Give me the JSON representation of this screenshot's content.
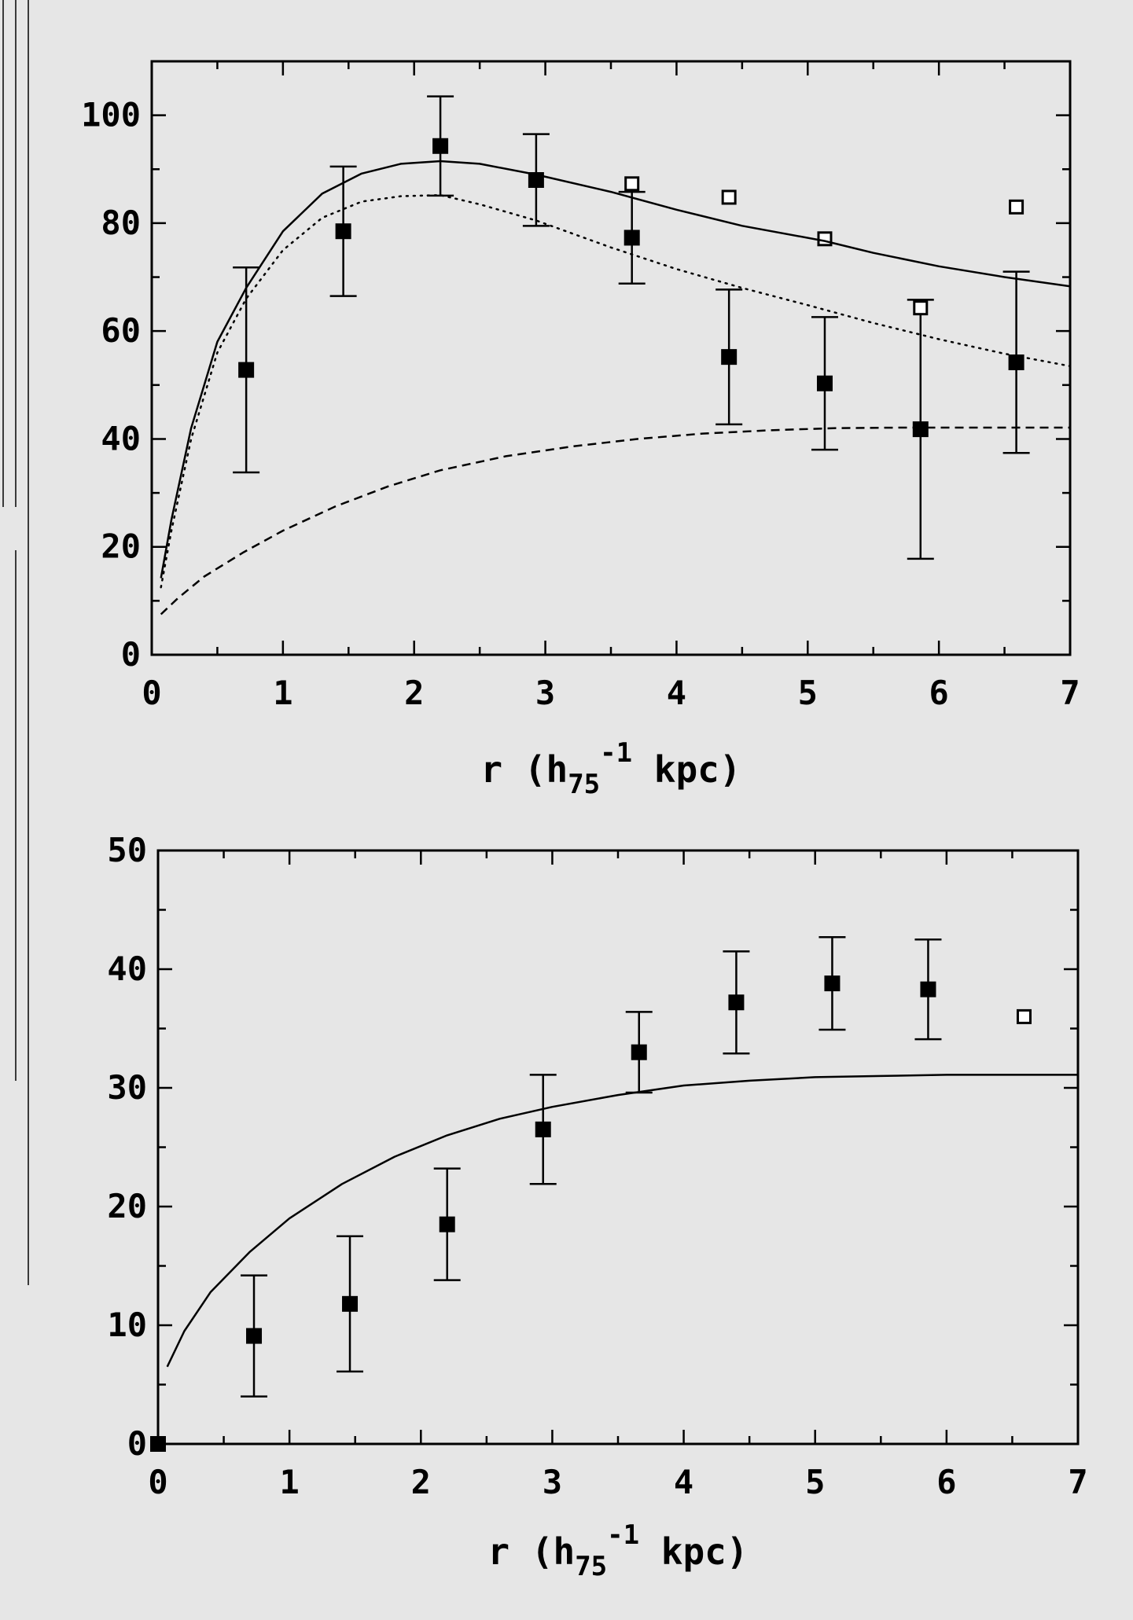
{
  "colors": {
    "background": "#e6e6e6",
    "ink": "#000000",
    "open_marker_fill": "#ffffff"
  },
  "chart_data": [
    {
      "type": "scatter",
      "title": "",
      "xlabel": "r (h75^-1 kpc)",
      "xlabel_parts": {
        "main": "r (h",
        "subscript": "75",
        "superscript": "-1",
        "tail": " kpc)"
      },
      "ylabel": "",
      "xlim": [
        0,
        7
      ],
      "ylim": [
        0,
        110
      ],
      "xticks": [
        0,
        1,
        2,
        3,
        4,
        5,
        6,
        7
      ],
      "xtick_labels": [
        "0",
        "1",
        "2",
        "3",
        "4",
        "5",
        "6",
        "7"
      ],
      "yticks": [
        0,
        20,
        40,
        60,
        80,
        100
      ],
      "ytick_labels": [
        "0",
        "20",
        "40",
        "60",
        "80",
        "100"
      ],
      "grid": false,
      "legend": "none",
      "series": [
        {
          "marker": "filled-square",
          "points": [
            {
              "x": 0.72,
              "y": 52.8,
              "err": 19.0
            },
            {
              "x": 1.46,
              "y": 78.5,
              "err": 12.0
            },
            {
              "x": 2.2,
              "y": 94.3,
              "err": 9.2
            },
            {
              "x": 2.93,
              "y": 88.0,
              "err": 8.5
            },
            {
              "x": 3.66,
              "y": 77.3,
              "err": 8.5
            },
            {
              "x": 4.4,
              "y": 55.2,
              "err": 12.5
            },
            {
              "x": 5.13,
              "y": 50.3,
              "err": 12.3
            },
            {
              "x": 5.86,
              "y": 41.8,
              "err": 24.0
            },
            {
              "x": 6.59,
              "y": 54.2,
              "err": 16.8
            }
          ]
        },
        {
          "marker": "open-square",
          "points": [
            {
              "x": 3.66,
              "y": 87.3
            },
            {
              "x": 4.4,
              "y": 84.8
            },
            {
              "x": 5.13,
              "y": 77.1
            },
            {
              "x": 5.86,
              "y": 64.3
            },
            {
              "x": 6.59,
              "y": 83.0
            }
          ]
        },
        {
          "style": "solid-line",
          "points": [
            [
              0.07,
              14.2
            ],
            [
              0.15,
              25.0
            ],
            [
              0.3,
              42.0
            ],
            [
              0.5,
              58.0
            ],
            [
              0.72,
              68.0
            ],
            [
              1.0,
              78.5
            ],
            [
              1.3,
              85.5
            ],
            [
              1.6,
              89.2
            ],
            [
              1.9,
              91.0
            ],
            [
              2.2,
              91.5
            ],
            [
              2.5,
              91.0
            ],
            [
              2.93,
              89.0
            ],
            [
              3.5,
              85.8
            ],
            [
              4.0,
              82.5
            ],
            [
              4.5,
              79.5
            ],
            [
              5.13,
              76.7
            ],
            [
              5.5,
              74.5
            ],
            [
              6.0,
              72.0
            ],
            [
              6.5,
              70.0
            ],
            [
              7.0,
              68.3
            ]
          ]
        },
        {
          "style": "dotted-line",
          "points": [
            [
              0.07,
              12.5
            ],
            [
              0.15,
              23.0
            ],
            [
              0.3,
              40.0
            ],
            [
              0.5,
              56.0
            ],
            [
              0.72,
              66.0
            ],
            [
              1.0,
              75.0
            ],
            [
              1.3,
              81.0
            ],
            [
              1.6,
              84.0
            ],
            [
              1.9,
              85.0
            ],
            [
              2.2,
              85.2
            ],
            [
              2.5,
              83.5
            ],
            [
              2.93,
              80.5
            ],
            [
              3.5,
              75.5
            ],
            [
              4.0,
              71.5
            ],
            [
              4.5,
              68.0
            ],
            [
              5.0,
              64.8
            ],
            [
              5.5,
              61.5
            ],
            [
              6.0,
              58.5
            ],
            [
              6.5,
              55.8
            ],
            [
              7.0,
              53.5
            ]
          ]
        },
        {
          "style": "dashed-line",
          "points": [
            [
              0.07,
              7.5
            ],
            [
              0.2,
              10.5
            ],
            [
              0.4,
              14.5
            ],
            [
              0.7,
              19.0
            ],
            [
              1.0,
              23.0
            ],
            [
              1.4,
              27.5
            ],
            [
              1.8,
              31.2
            ],
            [
              2.2,
              34.2
            ],
            [
              2.7,
              36.8
            ],
            [
              3.2,
              38.6
            ],
            [
              3.7,
              40.0
            ],
            [
              4.2,
              41.0
            ],
            [
              4.7,
              41.6
            ],
            [
              5.2,
              42.0
            ],
            [
              5.7,
              42.1
            ],
            [
              6.2,
              42.1
            ],
            [
              7.0,
              42.1
            ]
          ]
        }
      ]
    },
    {
      "type": "scatter",
      "title": "",
      "xlabel": "r (h75^-1 kpc)",
      "xlabel_parts": {
        "main": "r (h",
        "subscript": "75",
        "superscript": "-1",
        "tail": " kpc)"
      },
      "ylabel": "",
      "xlim": [
        0,
        7
      ],
      "ylim": [
        0,
        50
      ],
      "xticks": [
        0,
        1,
        2,
        3,
        4,
        5,
        6,
        7
      ],
      "xtick_labels": [
        "0",
        "1",
        "2",
        "3",
        "4",
        "5",
        "6",
        "7"
      ],
      "yticks": [
        0,
        10,
        20,
        30,
        40,
        50
      ],
      "ytick_labels": [
        "0",
        "10",
        "20",
        "30",
        "40",
        "50"
      ],
      "grid": false,
      "legend": "none",
      "series": [
        {
          "marker": "filled-square",
          "points": [
            {
              "x": 0.0,
              "y": 0.0
            },
            {
              "x": 0.73,
              "y": 9.1,
              "err": 5.1
            },
            {
              "x": 1.46,
              "y": 11.8,
              "err": 5.7
            },
            {
              "x": 2.2,
              "y": 18.5,
              "err": 4.7
            },
            {
              "x": 2.93,
              "y": 26.5,
              "err": 4.6
            },
            {
              "x": 3.66,
              "y": 33.0,
              "err": 3.4
            },
            {
              "x": 4.4,
              "y": 37.2,
              "err": 4.3
            },
            {
              "x": 5.13,
              "y": 38.8,
              "err": 3.9
            },
            {
              "x": 5.86,
              "y": 38.3,
              "err": 4.2
            }
          ]
        },
        {
          "marker": "open-square",
          "points": [
            {
              "x": 6.59,
              "y": 36.0
            }
          ]
        },
        {
          "style": "solid-line",
          "points": [
            [
              0.07,
              6.5
            ],
            [
              0.2,
              9.5
            ],
            [
              0.4,
              12.8
            ],
            [
              0.7,
              16.2
            ],
            [
              1.0,
              19.0
            ],
            [
              1.4,
              21.9
            ],
            [
              1.8,
              24.2
            ],
            [
              2.2,
              26.0
            ],
            [
              2.6,
              27.4
            ],
            [
              3.0,
              28.4
            ],
            [
              3.5,
              29.4
            ],
            [
              4.0,
              30.2
            ],
            [
              4.5,
              30.6
            ],
            [
              5.0,
              30.9
            ],
            [
              5.5,
              31.0
            ],
            [
              6.0,
              31.1
            ],
            [
              7.0,
              31.1
            ]
          ]
        }
      ]
    }
  ]
}
